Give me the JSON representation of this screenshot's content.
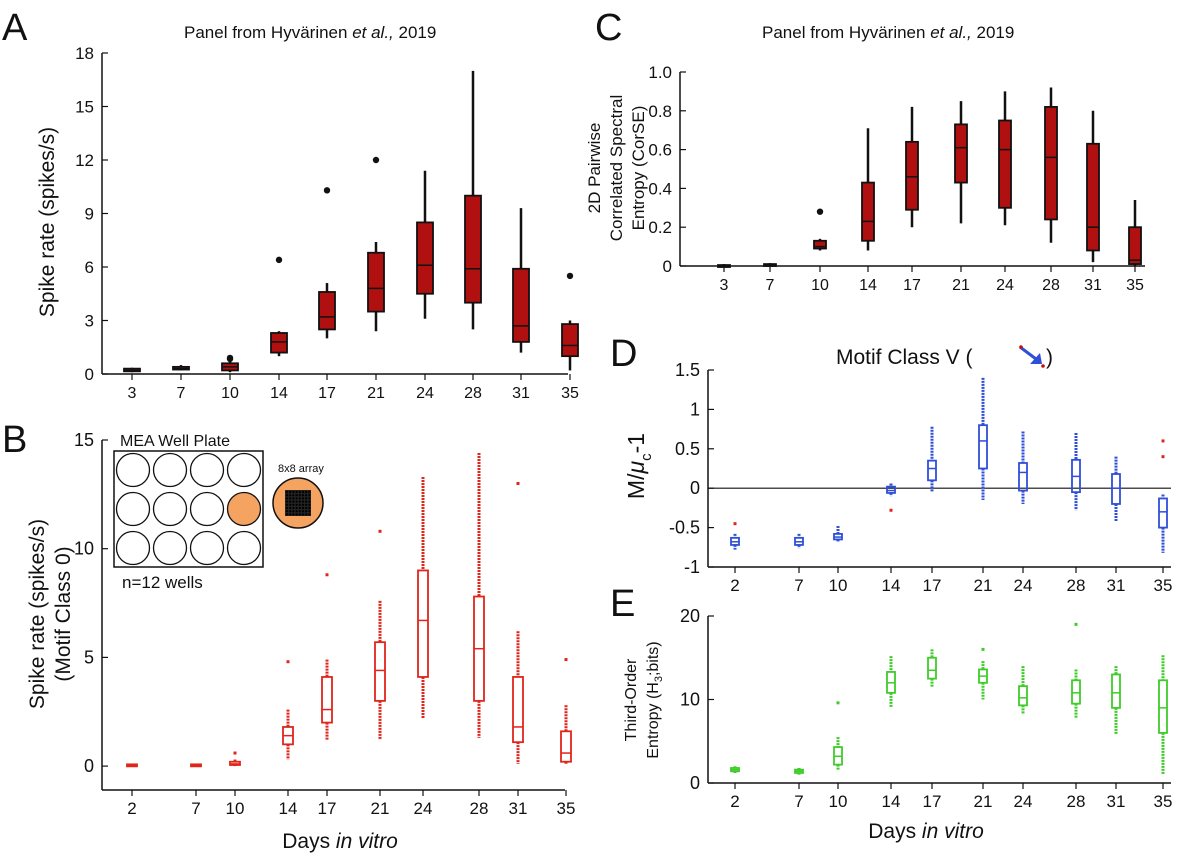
{
  "colors": {
    "A": "#b01010",
    "B": "#e0251b",
    "C": "#b01010",
    "D": "#2f4fd8",
    "E": "#3fcc2a",
    "axis": "#111111",
    "orange": "#f4a460"
  },
  "panels": {
    "A": {
      "letter": "A",
      "source_pre": "Panel from Hyvärinen ",
      "source_em": "et al.,",
      "source_post": " 2019"
    },
    "B": {
      "letter": "B",
      "inset_title": "MEA Well Plate",
      "inset_array_label": "8x8 array",
      "inset_n": "n=12 wells"
    },
    "C": {
      "letter": "C",
      "source_pre": "Panel from Hyvärinen ",
      "source_em": "et al.,",
      "source_post": " 2019"
    },
    "D": {
      "letter": "D",
      "motif_title": "Motif Class V (",
      "motif_title_end": ")"
    },
    "E": {
      "letter": "E"
    }
  },
  "shared_xlabel": {
    "pre": "Days ",
    "em": "in vitro"
  },
  "chart_data": [
    {
      "id": "A",
      "type": "box",
      "ylabel": "Spike rate (spikes/s)",
      "ylim": [
        0,
        18
      ],
      "yticks": [
        0,
        3,
        6,
        9,
        12,
        15,
        18
      ],
      "categories": [
        "3",
        "7",
        "10",
        "14",
        "17",
        "21",
        "24",
        "28",
        "31",
        "35"
      ],
      "boxes": [
        {
          "x": "3",
          "lo": 0.1,
          "q1": 0.15,
          "med": 0.2,
          "q3": 0.3,
          "hi": 0.35,
          "out": []
        },
        {
          "x": "7",
          "lo": 0.2,
          "q1": 0.25,
          "med": 0.3,
          "q3": 0.4,
          "hi": 0.5,
          "out": []
        },
        {
          "x": "10",
          "lo": 0.1,
          "q1": 0.2,
          "med": 0.4,
          "q3": 0.6,
          "hi": 0.7,
          "out": [
            0.9,
            0.85
          ]
        },
        {
          "x": "14",
          "lo": 1.0,
          "q1": 1.2,
          "med": 1.8,
          "q3": 2.3,
          "hi": 2.4,
          "out": [
            6.4
          ]
        },
        {
          "x": "17",
          "lo": 2.0,
          "q1": 2.5,
          "med": 3.2,
          "q3": 4.6,
          "hi": 5.1,
          "out": [
            10.3
          ]
        },
        {
          "x": "21",
          "lo": 2.4,
          "q1": 3.5,
          "med": 4.8,
          "q3": 6.8,
          "hi": 7.4,
          "out": [
            12.0
          ]
        },
        {
          "x": "24",
          "lo": 3.1,
          "q1": 4.5,
          "med": 6.1,
          "q3": 8.5,
          "hi": 11.4,
          "out": []
        },
        {
          "x": "28",
          "lo": 2.5,
          "q1": 4.0,
          "med": 5.9,
          "q3": 10.0,
          "hi": 17.0,
          "out": []
        },
        {
          "x": "31",
          "lo": 1.2,
          "q1": 1.8,
          "med": 2.7,
          "q3": 5.9,
          "hi": 9.3,
          "out": []
        },
        {
          "x": "35",
          "lo": 0.2,
          "q1": 1.0,
          "med": 1.6,
          "q3": 2.8,
          "hi": 3.0,
          "out": [
            5.5
          ]
        }
      ]
    },
    {
      "id": "B",
      "type": "box",
      "ylabel": "Spike rate (spikes/s)",
      "ylabel2": "(Motif Class 0)",
      "ylim": [
        -1.1,
        15
      ],
      "yticks": [
        0,
        5,
        10,
        15
      ],
      "categories": [
        "2",
        "7",
        "10",
        "14",
        "17",
        "21",
        "24",
        "28",
        "31",
        "35"
      ],
      "boxes": [
        {
          "x": "2",
          "lo": 0.0,
          "q1": 0.02,
          "med": 0.05,
          "q3": 0.08,
          "hi": 0.1,
          "out": []
        },
        {
          "x": "7",
          "lo": 0.0,
          "q1": 0.02,
          "med": 0.05,
          "q3": 0.08,
          "hi": 0.1,
          "out": []
        },
        {
          "x": "10",
          "lo": 0.0,
          "q1": 0.05,
          "med": 0.1,
          "q3": 0.2,
          "hi": 0.3,
          "out": [
            0.6
          ]
        },
        {
          "x": "14",
          "lo": 0.3,
          "q1": 1.0,
          "med": 1.4,
          "q3": 1.8,
          "hi": 2.6,
          "out": [
            4.8
          ]
        },
        {
          "x": "17",
          "lo": 1.2,
          "q1": 2.0,
          "med": 2.6,
          "q3": 4.1,
          "hi": 4.9,
          "out": [
            8.8
          ]
        },
        {
          "x": "21",
          "lo": 1.2,
          "q1": 3.0,
          "med": 4.4,
          "q3": 5.7,
          "hi": 7.6,
          "out": [
            10.8
          ]
        },
        {
          "x": "24",
          "lo": 2.2,
          "q1": 4.1,
          "med": 6.7,
          "q3": 9.0,
          "hi": 13.3,
          "out": []
        },
        {
          "x": "28",
          "lo": 1.3,
          "q1": 3.0,
          "med": 5.4,
          "q3": 7.8,
          "hi": 14.4,
          "out": []
        },
        {
          "x": "31",
          "lo": 0.1,
          "q1": 1.1,
          "med": 1.8,
          "q3": 4.1,
          "hi": 6.2,
          "out": [
            13.0
          ]
        },
        {
          "x": "35",
          "lo": 0.1,
          "q1": 0.2,
          "med": 0.6,
          "q3": 1.6,
          "hi": 2.8,
          "out": [
            4.9
          ]
        }
      ]
    },
    {
      "id": "C",
      "type": "box",
      "ylabel": "2D Pairwise",
      "ylabel2": "Correlated Spectral",
      "ylabel3": "Entropy (CorSE)",
      "ylim": [
        0,
        1.0
      ],
      "yticks": [
        0,
        0.2,
        0.4,
        0.6,
        0.8,
        1.0
      ],
      "ytick_labels": [
        "0",
        "0.2",
        "0.4",
        "0.6",
        "0.8",
        "1.0"
      ],
      "categories": [
        "3",
        "7",
        "10",
        "14",
        "17",
        "21",
        "24",
        "28",
        "31",
        "35"
      ],
      "boxes": [
        {
          "x": "3",
          "lo": 0.0,
          "q1": 0.0,
          "med": 0.0,
          "q3": 0.005,
          "hi": 0.01,
          "out": []
        },
        {
          "x": "7",
          "lo": 0.0,
          "q1": 0.0,
          "med": 0.005,
          "q3": 0.01,
          "hi": 0.015,
          "out": []
        },
        {
          "x": "10",
          "lo": 0.08,
          "q1": 0.09,
          "med": 0.1,
          "q3": 0.13,
          "hi": 0.14,
          "out": [
            0.28
          ]
        },
        {
          "x": "14",
          "lo": 0.08,
          "q1": 0.13,
          "med": 0.23,
          "q3": 0.43,
          "hi": 0.71,
          "out": []
        },
        {
          "x": "17",
          "lo": 0.2,
          "q1": 0.29,
          "med": 0.46,
          "q3": 0.64,
          "hi": 0.82,
          "out": []
        },
        {
          "x": "21",
          "lo": 0.22,
          "q1": 0.43,
          "med": 0.61,
          "q3": 0.73,
          "hi": 0.85,
          "out": []
        },
        {
          "x": "24",
          "lo": 0.21,
          "q1": 0.3,
          "med": 0.6,
          "q3": 0.75,
          "hi": 0.9,
          "out": []
        },
        {
          "x": "28",
          "lo": 0.12,
          "q1": 0.24,
          "med": 0.56,
          "q3": 0.82,
          "hi": 0.92,
          "out": []
        },
        {
          "x": "31",
          "lo": 0.02,
          "q1": 0.08,
          "med": 0.2,
          "q3": 0.63,
          "hi": 0.8,
          "out": []
        },
        {
          "x": "35",
          "lo": 0.0,
          "q1": 0.01,
          "med": 0.03,
          "q3": 0.2,
          "hi": 0.34,
          "out": []
        }
      ]
    },
    {
      "id": "D",
      "type": "box",
      "ylabel_main": "M/",
      "ylabel_mu": "μ",
      "ylabel_sub": "c",
      "ylabel_tail": "-1",
      "ylim": [
        -1,
        1.5
      ],
      "yticks": [
        -1,
        -0.5,
        0,
        0.5,
        1,
        1.5
      ],
      "ytick_labels": [
        "-1",
        "-0.5",
        "0",
        "0.5",
        "1",
        "1.5"
      ],
      "zero_line": true,
      "categories": [
        "2",
        "7",
        "10",
        "14",
        "17",
        "21",
        "24",
        "28",
        "31",
        "35"
      ],
      "boxes": [
        {
          "x": "2",
          "lo": -0.78,
          "q1": -0.72,
          "med": -0.68,
          "q3": -0.63,
          "hi": -0.58,
          "out": [
            -0.45
          ]
        },
        {
          "x": "7",
          "lo": -0.76,
          "q1": -0.72,
          "med": -0.68,
          "q3": -0.63,
          "hi": -0.58,
          "out": []
        },
        {
          "x": "10",
          "lo": -0.68,
          "q1": -0.65,
          "med": -0.62,
          "q3": -0.58,
          "hi": -0.48,
          "out": []
        },
        {
          "x": "14",
          "lo": -0.1,
          "q1": -0.06,
          "med": -0.03,
          "q3": 0.02,
          "hi": 0.06,
          "out": [
            -0.28
          ]
        },
        {
          "x": "17",
          "lo": -0.05,
          "q1": 0.1,
          "med": 0.25,
          "q3": 0.35,
          "hi": 0.78,
          "out": []
        },
        {
          "x": "21",
          "lo": -0.15,
          "q1": 0.25,
          "med": 0.6,
          "q3": 0.8,
          "hi": 1.4,
          "out": []
        },
        {
          "x": "24",
          "lo": -0.2,
          "q1": -0.03,
          "med": 0.2,
          "q3": 0.32,
          "hi": 0.72,
          "out": []
        },
        {
          "x": "28",
          "lo": -0.28,
          "q1": -0.05,
          "med": 0.15,
          "q3": 0.36,
          "hi": 0.7,
          "out": []
        },
        {
          "x": "31",
          "lo": -0.42,
          "q1": -0.2,
          "med": 0.0,
          "q3": 0.18,
          "hi": 0.4,
          "out": []
        },
        {
          "x": "35",
          "lo": -0.82,
          "q1": -0.5,
          "med": -0.3,
          "q3": -0.13,
          "hi": -0.08,
          "out": [
            0.6,
            0.4
          ]
        }
      ]
    },
    {
      "id": "E",
      "type": "box",
      "ylabel": "Third-Order",
      "ylabel2_pre": "Entropy (H",
      "ylabel2_sub": "3",
      "ylabel2_post": ";bits)",
      "ylim": [
        0,
        20
      ],
      "yticks": [
        0,
        10,
        20
      ],
      "categories": [
        "2",
        "7",
        "10",
        "14",
        "17",
        "21",
        "24",
        "28",
        "31",
        "35"
      ],
      "boxes": [
        {
          "x": "2",
          "lo": 1.2,
          "q1": 1.4,
          "med": 1.6,
          "q3": 1.8,
          "hi": 2.0,
          "out": []
        },
        {
          "x": "7",
          "lo": 1.0,
          "q1": 1.2,
          "med": 1.4,
          "q3": 1.6,
          "hi": 1.8,
          "out": []
        },
        {
          "x": "10",
          "lo": 1.5,
          "q1": 2.2,
          "med": 3.2,
          "q3": 4.3,
          "hi": 5.5,
          "out": [
            9.6
          ]
        },
        {
          "x": "14",
          "lo": 9.0,
          "q1": 10.8,
          "med": 12.0,
          "q3": 13.3,
          "hi": 15.2,
          "out": []
        },
        {
          "x": "17",
          "lo": 11.5,
          "q1": 12.5,
          "med": 13.5,
          "q3": 15.0,
          "hi": 16.0,
          "out": []
        },
        {
          "x": "21",
          "lo": 10.0,
          "q1": 12.0,
          "med": 12.8,
          "q3": 13.6,
          "hi": 14.6,
          "out": [
            16.0
          ]
        },
        {
          "x": "24",
          "lo": 8.2,
          "q1": 9.3,
          "med": 10.2,
          "q3": 11.6,
          "hi": 14.0,
          "out": []
        },
        {
          "x": "28",
          "lo": 7.8,
          "q1": 9.5,
          "med": 10.8,
          "q3": 12.3,
          "hi": 13.6,
          "out": [
            19.0
          ]
        },
        {
          "x": "31",
          "lo": 5.8,
          "q1": 9.0,
          "med": 10.8,
          "q3": 13.0,
          "hi": 14.0,
          "out": []
        },
        {
          "x": "35",
          "lo": 1.0,
          "q1": 6.0,
          "med": 9.0,
          "q3": 12.3,
          "hi": 15.3,
          "out": []
        }
      ]
    }
  ]
}
